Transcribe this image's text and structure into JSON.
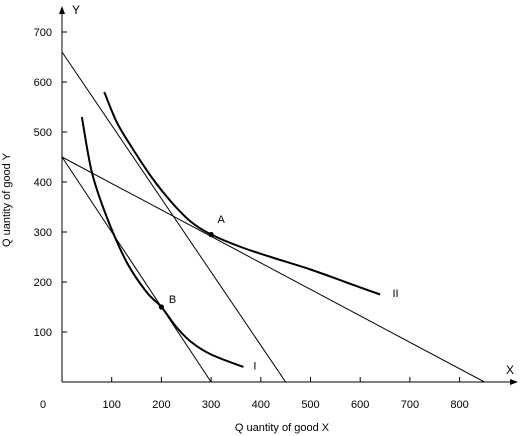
{
  "chart_data": {
    "type": "line",
    "title": "",
    "xlabel": "Q uantity of good X",
    "ylabel": "Q uantity of good Y",
    "x_axis_name": "X",
    "y_axis_name": "Y",
    "origin_label": "0",
    "xlim": [
      0,
      900
    ],
    "ylim": [
      0,
      750
    ],
    "x_ticks": [
      {
        "value": 100,
        "label": "100"
      },
      {
        "value": 200,
        "label": "200"
      },
      {
        "value": 300,
        "label": "300"
      },
      {
        "value": 400,
        "label": "400"
      },
      {
        "value": 500,
        "label": "500"
      },
      {
        "value": 600,
        "label": "600"
      },
      {
        "value": 700,
        "label": "700"
      },
      {
        "value": 800,
        "label": "800"
      }
    ],
    "y_ticks": [
      {
        "value": 100,
        "label": "100"
      },
      {
        "value": 200,
        "label": "200"
      },
      {
        "value": 300,
        "label": "300"
      },
      {
        "value": 400,
        "label": "400"
      },
      {
        "value": 500,
        "label": "500"
      },
      {
        "value": 600,
        "label": "600"
      },
      {
        "value": 700,
        "label": "700"
      }
    ],
    "lines": [
      {
        "points": [
          [
            0,
            660
          ],
          [
            450,
            0
          ]
        ]
      },
      {
        "points": [
          [
            0,
            450
          ],
          [
            300,
            0
          ]
        ]
      },
      {
        "points": [
          [
            0,
            450
          ],
          [
            850,
            0
          ]
        ]
      }
    ],
    "curves": [
      {
        "label": "I",
        "label_point": [
          385,
          25
        ],
        "points": [
          [
            40,
            530
          ],
          [
            60,
            420
          ],
          [
            90,
            330
          ],
          [
            130,
            240
          ],
          [
            170,
            180
          ],
          [
            200,
            150
          ],
          [
            230,
            110
          ],
          [
            260,
            80
          ],
          [
            300,
            55
          ],
          [
            365,
            30
          ]
        ]
      },
      {
        "label": "II",
        "label_point": [
          665,
          170
        ],
        "points": [
          [
            85,
            580
          ],
          [
            110,
            520
          ],
          [
            140,
            470
          ],
          [
            180,
            410
          ],
          [
            220,
            360
          ],
          [
            260,
            320
          ],
          [
            300,
            295
          ],
          [
            360,
            270
          ],
          [
            420,
            250
          ],
          [
            500,
            225
          ],
          [
            570,
            200
          ],
          [
            640,
            175
          ]
        ]
      }
    ],
    "annotations": [
      {
        "label": "A",
        "x": 300,
        "y": 295,
        "label_x": 313,
        "label_y": 318
      },
      {
        "label": "B",
        "x": 200,
        "y": 150,
        "label_x": 215,
        "label_y": 158
      }
    ]
  }
}
